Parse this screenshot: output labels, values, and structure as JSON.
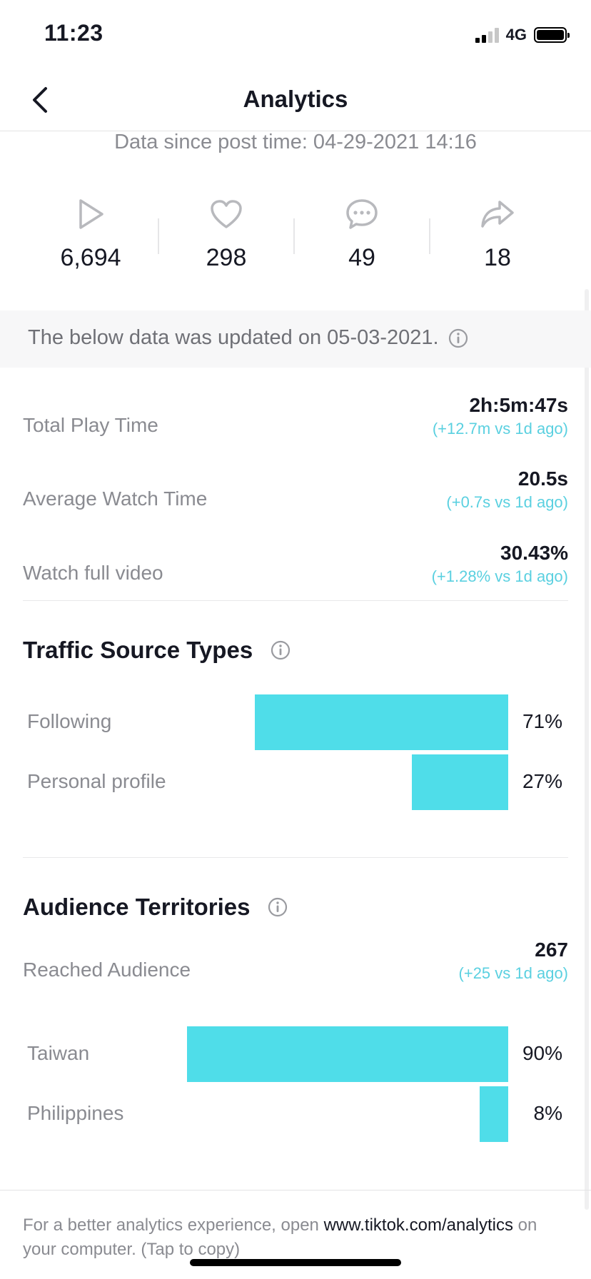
{
  "status": {
    "time": "11:23",
    "network": "4G"
  },
  "nav": {
    "title": "Analytics"
  },
  "since": "Data since post time: 04-29-2021 14:16",
  "stats": [
    {
      "icon": "play-icon",
      "value": "6,694"
    },
    {
      "icon": "heart-icon",
      "value": "298"
    },
    {
      "icon": "comment-icon",
      "value": "49"
    },
    {
      "icon": "share-icon",
      "value": "18"
    }
  ],
  "update_notice": "The below data was updated on 05-03-2021.",
  "metrics": [
    {
      "label": "Total Play Time",
      "value": "2h:5m:47s",
      "delta": "(+12.7m vs 1d ago)"
    },
    {
      "label": "Average Watch Time",
      "value": "20.5s",
      "delta": "(+0.7s vs 1d ago)"
    },
    {
      "label": "Watch full video",
      "value": "30.43%",
      "delta": "(+1.28% vs 1d ago)"
    }
  ],
  "traffic": {
    "title": "Traffic Source Types",
    "items": [
      {
        "label": "Following",
        "percent": 71,
        "percent_text": "71%"
      },
      {
        "label": "Personal profile",
        "percent": 27,
        "percent_text": "27%"
      }
    ]
  },
  "audience": {
    "title": "Audience Territories",
    "reached_label": "Reached Audience",
    "reached_value": "267",
    "reached_delta": "(+25 vs 1d ago)",
    "items": [
      {
        "label": "Taiwan",
        "percent": 90,
        "percent_text": "90%"
      },
      {
        "label": "Philippines",
        "percent": 8,
        "percent_text": "8%"
      }
    ]
  },
  "footer": {
    "text_before": "For a better analytics experience, open ",
    "link": "www.tiktok.com/analytics",
    "text_after": " on your computer. (Tap to copy)"
  },
  "colors": {
    "accent": "#4fdde9",
    "delta": "#5ad0e0",
    "muted": "#8a8b91",
    "text": "#161823"
  }
}
